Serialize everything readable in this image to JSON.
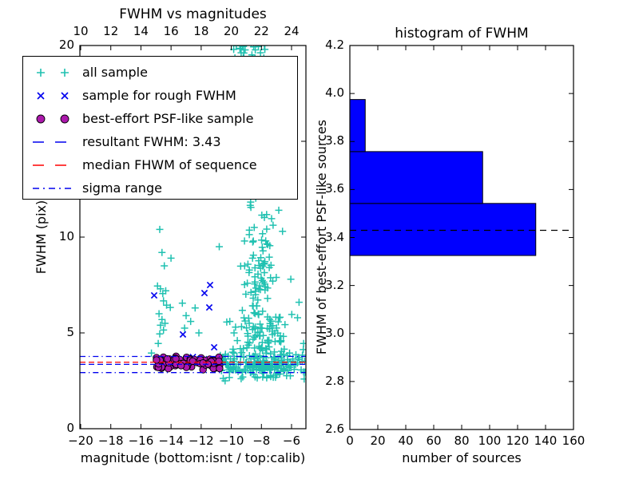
{
  "colors": {
    "cyan": "#20c1b1",
    "blue": "#0000ee",
    "magenta": "#ac19ac",
    "red": "#ff0000",
    "black": "#000000",
    "hist_bar": "#0000ff",
    "background": "#ffffff"
  },
  "left_plot": {
    "title": "FWHM vs magnitudes",
    "xlabel": "magnitude (bottom:isnt / top:calib)",
    "ylabel": "FWHM (pix)",
    "xlim": [
      -20,
      -5
    ],
    "ylim": [
      0,
      20
    ],
    "bottom_ticks": {
      "values": [
        -20,
        -18,
        -16,
        -14,
        -12,
        -10,
        -8,
        -6
      ],
      "labels": [
        "−20",
        "−18",
        "−16",
        "−14",
        "−12",
        "−10",
        "−8",
        "−6"
      ]
    },
    "top_ticks": {
      "values": [
        -20,
        -18,
        -16,
        -14,
        -12,
        -10,
        -8,
        -6
      ],
      "labels": [
        "10",
        "12",
        "14",
        "16",
        "18",
        "20",
        "22",
        "24"
      ]
    },
    "y_ticks": {
      "values": [
        0,
        5,
        10,
        15,
        20
      ],
      "labels": [
        "0",
        "5",
        "10",
        "15",
        "20"
      ]
    }
  },
  "legend": {
    "items": [
      {
        "label": "all sample",
        "type": "plus",
        "color_key": "cyan"
      },
      {
        "label": "sample for rough FWHM",
        "type": "cross",
        "color_key": "blue"
      },
      {
        "label": "best-effort PSF-like sample",
        "type": "circle",
        "color_key": "magenta"
      },
      {
        "label": "resultant FWHM: 3.43",
        "type": "dashed",
        "color_key": "blue"
      },
      {
        "label": "median FHWM of sequence",
        "type": "dashed",
        "color_key": "red"
      },
      {
        "label": "sigma range",
        "type": "dashdot",
        "color_key": "blue"
      }
    ]
  },
  "right_plot": {
    "title": "histogram of FWHM",
    "xlabel": "number of sources",
    "ylabel": "FWHM of best-effort PSF-like sources",
    "xlim": [
      0,
      160
    ],
    "ylim": [
      2.6,
      4.2
    ],
    "x_ticks": {
      "values": [
        0,
        20,
        40,
        60,
        80,
        100,
        120,
        140,
        160
      ],
      "labels": [
        "0",
        "20",
        "40",
        "60",
        "80",
        "100",
        "120",
        "140",
        "160"
      ]
    },
    "y_ticks": {
      "values": [
        2.6,
        2.8,
        3.0,
        3.2,
        3.4,
        3.6,
        3.8,
        4.0,
        4.2
      ],
      "labels": [
        "2.6",
        "2.8",
        "3.0",
        "3.2",
        "3.4",
        "3.6",
        "3.8",
        "4.0",
        "4.2"
      ]
    }
  },
  "chart_data": [
    {
      "type": "scatter",
      "title": "FWHM vs magnitudes",
      "xlabel": "magnitude (bottom:isnt / top:calib)",
      "ylabel": "FWHM (pix)",
      "xlim": [
        -20,
        -5
      ],
      "ylim": [
        0,
        20
      ],
      "top_axis_tick_labels": [
        10,
        12,
        14,
        16,
        18,
        20,
        22,
        24
      ],
      "rng_seed": 42,
      "series": [
        {
          "name": "all sample",
          "marker": "plus",
          "color_key": "cyan",
          "points": [
            [
              -14.75,
              10.4
            ],
            [
              -14.6,
              9.2
            ],
            [
              -14.0,
              8.9
            ],
            [
              -14.45,
              8.5
            ],
            [
              -14.9,
              7.45
            ],
            [
              -14.7,
              7.3
            ],
            [
              -14.55,
              7.05
            ],
            [
              -14.35,
              7.2
            ],
            [
              -14.5,
              6.67
            ],
            [
              -14.3,
              6.45
            ],
            [
              -14.05,
              6.33
            ],
            [
              -14.8,
              6.0
            ],
            [
              -14.6,
              5.7
            ],
            [
              -14.7,
              5.4
            ],
            [
              -14.5,
              5.15
            ],
            [
              -14.75,
              4.95
            ],
            [
              -14.4,
              5.5
            ],
            [
              -14.85,
              4.45
            ],
            [
              -13.25,
              6.55
            ],
            [
              -13.0,
              5.9
            ],
            [
              -12.7,
              5.6
            ],
            [
              -13.1,
              5.25
            ],
            [
              -12.4,
              6.3
            ],
            [
              -12.15,
              5.0
            ],
            [
              -10.8,
              9.5
            ],
            [
              -6.85,
              11.4
            ],
            [
              -6.6,
              10.3
            ],
            [
              -6.05,
              7.8
            ],
            [
              -10.1,
              5.6
            ],
            [
              -9.6,
              4.6
            ],
            [
              -15.3,
              3.95
            ],
            [
              -5.5,
              6.6
            ]
          ],
          "clusters": [
            {
              "desc": "clipped cluster at top edge near mag -8",
              "n": 26,
              "m": [
                "u",
                -9.85,
                -7.45
              ],
              "f": [
                "u",
                19.3,
                20.35
              ]
            },
            {
              "desc": "upper part of vertical column",
              "n": 26,
              "m": [
                "g",
                -8.2,
                0.5,
                -9.2,
                -6.6
              ],
              "f": [
                "u",
                9.0,
                12.6
              ]
            },
            {
              "desc": "middle part of vertical column",
              "n": 55,
              "m": [
                "g",
                -8.2,
                0.55,
                -9.5,
                -6.3
              ],
              "f": [
                "u",
                6.0,
                9.0
              ]
            },
            {
              "desc": "lower column spread",
              "n": 75,
              "m": [
                "g",
                -8.1,
                1.1,
                -10.3,
                -5.2
              ],
              "f": [
                "u",
                4.15,
                6.0
              ]
            },
            {
              "desc": "dense horizontal band near FWHM 3.4",
              "n": 135,
              "m": [
                "u",
                -10.9,
                -5.1
              ],
              "f": [
                "g",
                3.35,
                0.38,
                2.5,
                4.15
              ]
            },
            {
              "desc": "dense band core",
              "n": 60,
              "m": [
                "u",
                -9.0,
                -6.2
              ],
              "f": [
                "g",
                3.3,
                0.3,
                2.6,
                4.05
              ]
            }
          ]
        },
        {
          "name": "sample for rough FWHM",
          "marker": "cross",
          "color_key": "blue",
          "points": [
            [
              -15.12,
              6.96
            ],
            [
              -11.78,
              7.08
            ],
            [
              -11.41,
              7.5
            ],
            [
              -11.46,
              6.33
            ],
            [
              -13.21,
              4.92
            ],
            [
              -11.14,
              4.25
            ],
            [
              -12.55,
              3.74
            ],
            [
              -14.2,
              3.62
            ]
          ],
          "clusters": []
        },
        {
          "name": "best-effort PSF-like sample",
          "marker": "circle",
          "color_key": "magenta",
          "points": [],
          "clusters": [
            {
              "desc": "PSF-like clump around FWHM 3.45",
              "n": 80,
              "m": [
                "u",
                -15.1,
                -10.7
              ],
              "f": [
                "g",
                3.45,
                0.16,
                3.08,
                3.88
              ]
            }
          ]
        }
      ],
      "lines": [
        {
          "name": "resultant FWHM",
          "value": 3.43,
          "draw_y": 3.36,
          "style": "dashed",
          "color_key": "blue"
        },
        {
          "name": "median FHWM of sequence",
          "draw_y": 3.47,
          "style": "dashed",
          "color_key": "red"
        },
        {
          "name": "sigma range upper",
          "draw_y": 3.77,
          "style": "dashdot",
          "color_key": "blue"
        },
        {
          "name": "sigma range lower",
          "draw_y": 2.93,
          "style": "dashdot",
          "color_key": "blue"
        }
      ]
    },
    {
      "type": "bar",
      "orientation": "horizontal",
      "title": "histogram of FWHM",
      "xlabel": "number of sources",
      "ylabel": "FWHM of best-effort PSF-like sources",
      "xlim": [
        0,
        160
      ],
      "ylim": [
        2.6,
        4.2
      ],
      "bin_edges": [
        3.325,
        3.542,
        3.758,
        3.975
      ],
      "counts": [
        133,
        95,
        11
      ],
      "dashed_line_y": 3.43,
      "bar_color_key": "hist_bar"
    }
  ]
}
